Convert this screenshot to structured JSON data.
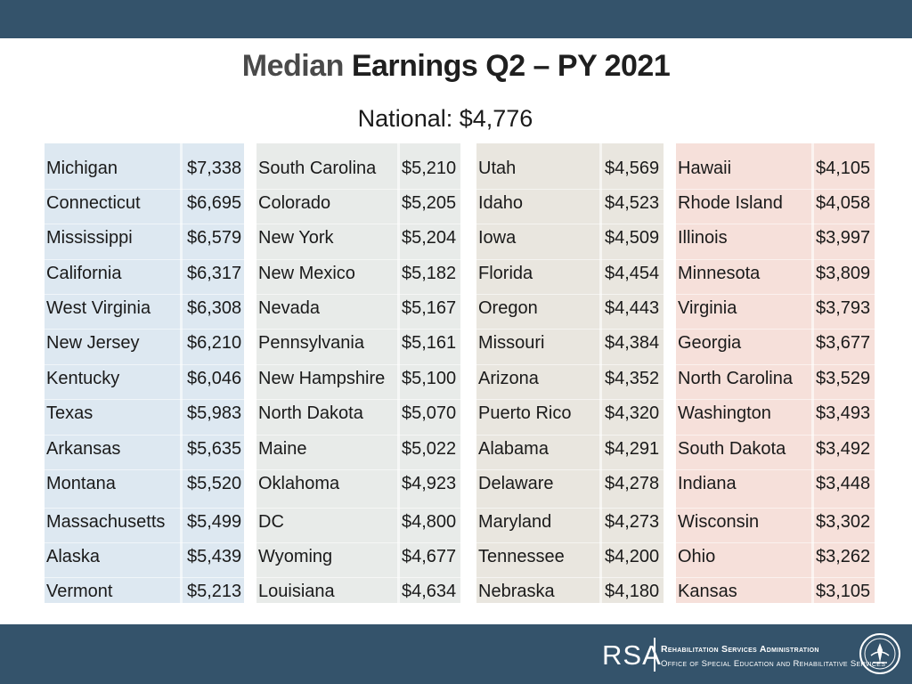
{
  "title": {
    "part1": "Median",
    "part2": " Earnings Q2 – PY 2021"
  },
  "subtitle": "National: $4,776",
  "groups": [
    {
      "rows": [
        {
          "state": "Michigan",
          "value": "$7,338"
        },
        {
          "state": "Connecticut",
          "value": "$6,695"
        },
        {
          "state": "Mississippi",
          "value": "$6,579"
        },
        {
          "state": "California",
          "value": "$6,317"
        },
        {
          "state": "West Virginia",
          "value": "$6,308"
        },
        {
          "state": "New Jersey",
          "value": "$6,210"
        },
        {
          "state": "Kentucky",
          "value": "$6,046"
        },
        {
          "state": "Texas",
          "value": "$5,983"
        },
        {
          "state": "Arkansas",
          "value": "$5,635"
        },
        {
          "state": "Montana",
          "value": "$5,520"
        },
        {
          "state": "Massachusetts",
          "value": "$5,499"
        },
        {
          "state": "Alaska",
          "value": "$5,439"
        },
        {
          "state": "Vermont",
          "value": "$5,213"
        }
      ]
    },
    {
      "rows": [
        {
          "state": "South Carolina",
          "value": "$5,210"
        },
        {
          "state": "Colorado",
          "value": "$5,205"
        },
        {
          "state": "New York",
          "value": "$5,204"
        },
        {
          "state": "New Mexico",
          "value": "$5,182"
        },
        {
          "state": "Nevada",
          "value": "$5,167"
        },
        {
          "state": "Pennsylvania",
          "value": "$5,161"
        },
        {
          "state": "New Hampshire",
          "value": "$5,100"
        },
        {
          "state": "North Dakota",
          "value": "$5,070"
        },
        {
          "state": "Maine",
          "value": "$5,022"
        },
        {
          "state": "Oklahoma",
          "value": "$4,923"
        },
        {
          "state": "DC",
          "value": "$4,800"
        },
        {
          "state": "Wyoming",
          "value": "$4,677"
        },
        {
          "state": "Louisiana",
          "value": "$4,634"
        }
      ]
    },
    {
      "rows": [
        {
          "state": "Utah",
          "value": "$4,569"
        },
        {
          "state": "Idaho",
          "value": "$4,523"
        },
        {
          "state": "Iowa",
          "value": "$4,509"
        },
        {
          "state": "Florida",
          "value": "$4,454"
        },
        {
          "state": "Oregon",
          "value": "$4,443"
        },
        {
          "state": "Missouri",
          "value": "$4,384"
        },
        {
          "state": "Arizona",
          "value": "$4,352"
        },
        {
          "state": "Puerto Rico",
          "value": "$4,320"
        },
        {
          "state": "Alabama",
          "value": "$4,291"
        },
        {
          "state": "Delaware",
          "value": "$4,278"
        },
        {
          "state": "Maryland",
          "value": "$4,273"
        },
        {
          "state": "Tennessee",
          "value": "$4,200"
        },
        {
          "state": "Nebraska",
          "value": "$4,180"
        }
      ]
    },
    {
      "rows": [
        {
          "state": "Hawaii",
          "value": "$4,105"
        },
        {
          "state": "Rhode Island",
          "value": "$4,058"
        },
        {
          "state": "Illinois",
          "value": "$3,997"
        },
        {
          "state": "Minnesota",
          "value": "$3,809"
        },
        {
          "state": "Virginia",
          "value": "$3,793"
        },
        {
          "state": "Georgia",
          "value": "$3,677"
        },
        {
          "state": "North Carolina",
          "value": "$3,529"
        },
        {
          "state": "Washington",
          "value": "$3,493"
        },
        {
          "state": "South Dakota",
          "value": "$3,492"
        },
        {
          "state": "Indiana",
          "value": "$3,448"
        },
        {
          "state": "Wisconsin",
          "value": "$3,302"
        },
        {
          "state": "Ohio",
          "value": "$3,262"
        },
        {
          "state": "Kansas",
          "value": "$3,105"
        }
      ]
    }
  ],
  "colors": {
    "group_backgrounds": [
      "#dde8f1",
      "#e8ebe9",
      "#e9e6df",
      "#f6e0da"
    ],
    "bar": "#34536b"
  },
  "footer": {
    "logo": "RSA",
    "line1": "Rehabilitation Services Administration",
    "line2": "Office of Special Education and Rehabilitative Services",
    "seal_icon": "department-seal-icon"
  }
}
